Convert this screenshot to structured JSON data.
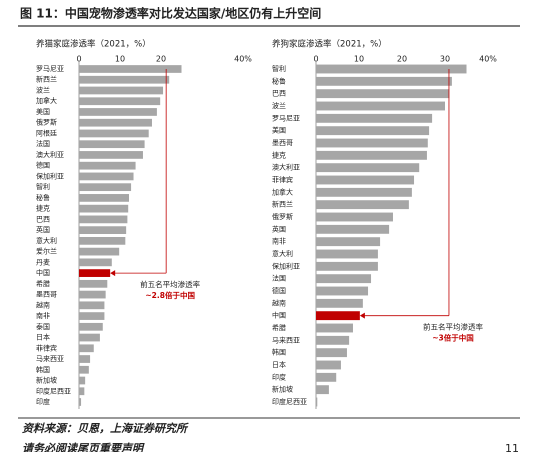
{
  "header": {
    "title": "图 11：中国宠物渗透率对比发达国家/地区仍有上升空间"
  },
  "chart_data": [
    {
      "type": "bar",
      "orientation": "horizontal",
      "title": "养猫家庭渗透率（2021，%）",
      "categories": [
        "罗马尼亚",
        "新西兰",
        "波兰",
        "加拿大",
        "美国",
        "俄罗斯",
        "阿根廷",
        "法国",
        "澳大利亚",
        "德国",
        "保加利亚",
        "智利",
        "秘鲁",
        "捷克",
        "巴西",
        "英国",
        "意大利",
        "爱尔兰",
        "丹麦",
        "中国",
        "希腊",
        "墨西哥",
        "越南",
        "南非",
        "泰国",
        "日本",
        "菲律宾",
        "马来西亚",
        "韩国",
        "新加坡",
        "印度尼西亚",
        "印度"
      ],
      "values": [
        25,
        22,
        20.5,
        19.8,
        19,
        17.8,
        17,
        16,
        15.6,
        13.8,
        13.3,
        12.7,
        12.2,
        12,
        11.8,
        11.5,
        11.3,
        9.8,
        8,
        7.6,
        6.9,
        6.5,
        6.2,
        6.2,
        5.8,
        5.1,
        3.6,
        2.7,
        2.4,
        1.5,
        1.3,
        0.5
      ],
      "color": "#a6a6a6",
      "highlight_category": "中国",
      "highlight_color": "#c00000",
      "xlim": [
        0,
        40
      ],
      "xticks": [
        0,
        10,
        20,
        {
          "value": 40,
          "label": "40%"
        }
      ],
      "annotation": [
        "前五名平均渗透率",
        "~2.8倍于中国"
      ]
    },
    {
      "type": "bar",
      "orientation": "horizontal",
      "title": "养狗家庭渗透率（2021，%）",
      "categories": [
        "智利",
        "秘鲁",
        "巴西",
        "波兰",
        "罗马尼亚",
        "美国",
        "墨西哥",
        "捷克",
        "澳大利亚",
        "菲律宾",
        "加拿大",
        "新西兰",
        "俄罗斯",
        "英国",
        "南非",
        "意大利",
        "保加利亚",
        "法国",
        "德国",
        "越南",
        "中国",
        "希腊",
        "马来西亚",
        "韩国",
        "日本",
        "印度",
        "新加坡",
        "印度尼西亚"
      ],
      "values": [
        35,
        31.6,
        31,
        30,
        27,
        26.3,
        26,
        25.8,
        24,
        22.8,
        22.3,
        21.6,
        17.9,
        17,
        14.9,
        14.4,
        14.4,
        12.8,
        12.1,
        10.9,
        10.2,
        8.6,
        7.7,
        7.2,
        5.8,
        4.7,
        3,
        0.3
      ],
      "color": "#a6a6a6",
      "highlight_category": "中国",
      "highlight_color": "#c00000",
      "xlim": [
        0,
        40
      ],
      "xticks": [
        0,
        10,
        20,
        30,
        {
          "value": 40,
          "label": "40%"
        }
      ],
      "annotation": [
        "前五名平均渗透率",
        "~3倍于中国"
      ]
    }
  ],
  "footer": {
    "source": "资料来源：贝恩，上海证券研究所",
    "disclaimer": "请务必阅读尾页重要声明",
    "page": "11"
  }
}
